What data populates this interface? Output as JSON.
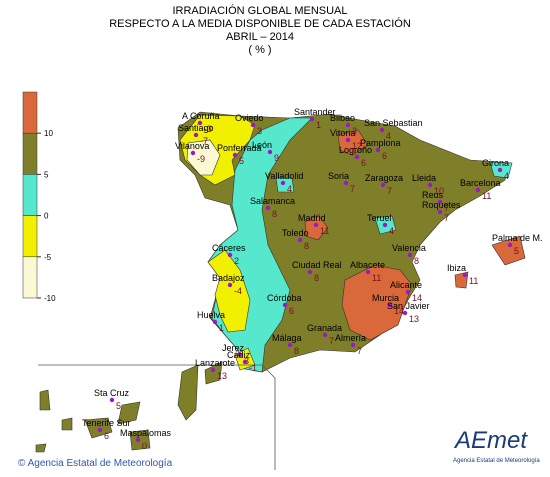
{
  "title": [
    "IRRADIACIÓN GLOBAL MENSUAL",
    "RESPECTO A LA MEDIA DISPONIBLE DE CADA ESTACIÓN",
    "ABRIL – 2014",
    "( % )"
  ],
  "legend": {
    "lim": [
      -10,
      15
    ],
    "ticks": [
      10,
      5,
      0,
      -5,
      -10
    ],
    "colors": [
      "#d9683a",
      "#7f7f2a",
      "#55e8cc",
      "#f0f000",
      "#fbf8d4"
    ]
  },
  "stations": [
    {
      "name": "A Coruña",
      "value": -3
    },
    {
      "name": "Santiago",
      "value": -7
    },
    {
      "name": "Vilanova",
      "value": -9
    },
    {
      "name": "Oviedo",
      "value": 3
    },
    {
      "name": "Ponferrada",
      "value": 5
    },
    {
      "name": "León",
      "value": 9
    },
    {
      "name": "Santander",
      "value": 1
    },
    {
      "name": "Bilbao",
      "value": 3
    },
    {
      "name": "Vitoria",
      "value": 12
    },
    {
      "name": "San Sebastian",
      "value": 4
    },
    {
      "name": "Pamplona",
      "value": 6
    },
    {
      "name": "Logroño",
      "value": 6
    },
    {
      "name": "Girona",
      "value": 4
    },
    {
      "name": "Valladolid",
      "value": 4
    },
    {
      "name": "Soria",
      "value": 7
    },
    {
      "name": "Zaragoza",
      "value": 7
    },
    {
      "name": "Lleida",
      "value": 10
    },
    {
      "name": "Barcelona",
      "value": 11
    },
    {
      "name": "Salamanca",
      "value": 8
    },
    {
      "name": "Reus",
      "value": 7
    },
    {
      "name": "Roquetes",
      "value": 7
    },
    {
      "name": "Madrid",
      "value": 11
    },
    {
      "name": "Teruel",
      "value": 4
    },
    {
      "name": "Toledo",
      "value": 8
    },
    {
      "name": "Palma de M.",
      "value": 5
    },
    {
      "name": "Valencia",
      "value": 8
    },
    {
      "name": "Cáceres",
      "value": 2
    },
    {
      "name": "Ciudad Real",
      "value": 8
    },
    {
      "name": "Albacete",
      "value": 11
    },
    {
      "name": "Ibiza",
      "value": 11
    },
    {
      "name": "Badajoz",
      "value": -4
    },
    {
      "name": "Alicante",
      "value": 14
    },
    {
      "name": "Córdoba",
      "value": 6
    },
    {
      "name": "Murcia",
      "value": 14
    },
    {
      "name": "San Javier",
      "value": 13
    },
    {
      "name": "Huelva",
      "value": 1
    },
    {
      "name": "Granada",
      "value": 7
    },
    {
      "name": "Almería",
      "value": 7
    },
    {
      "name": "Málaga",
      "value": 8
    },
    {
      "name": "Jerez",
      "value": 3
    },
    {
      "name": "Cádiz",
      "value": -1
    },
    {
      "name": "Lanzarote",
      "value": 13
    },
    {
      "name": "Sta Cruz",
      "value": 5
    },
    {
      "name": "Tenerife Sur",
      "value": 6
    },
    {
      "name": "Maspalomas",
      "value": 0
    }
  ],
  "footer": "© Agencia Estatal de Meteorología",
  "logo": {
    "name": "AEmet",
    "subtitle": "Agencia Estatal de Meteorología"
  }
}
